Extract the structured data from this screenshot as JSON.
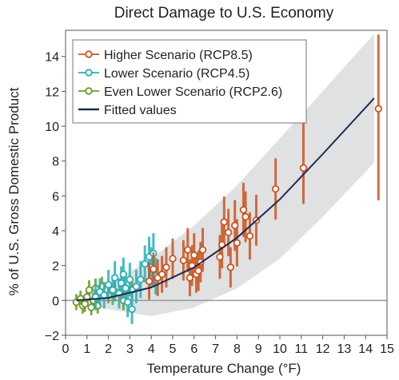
{
  "chart_data": {
    "type": "scatter",
    "title": "Direct Damage to U.S. Economy",
    "xlabel": "Temperature Change (°F)",
    "ylabel": "% of U.S. Gross Domestic Product",
    "xlim": [
      0,
      15
    ],
    "ylim": [
      -2,
      15.5
    ],
    "x_ticks": [
      "0",
      "1",
      "2",
      "3",
      "4",
      "5",
      "6",
      "7",
      "8",
      "9",
      "10",
      "11",
      "12",
      "13",
      "14",
      "15"
    ],
    "y_ticks": [
      "−2",
      "0",
      "2",
      "4",
      "6",
      "8",
      "10",
      "12",
      "14"
    ],
    "legend_position": "top-left",
    "grid": false,
    "legend": [
      "Higher Scenario (RCP8.5)",
      "Lower Scenario (RCP4.5)",
      "Even Lower Scenario (RCP2.6)",
      "Fitted values"
    ],
    "colors": {
      "higher": "#cc5520",
      "lower": "#2bb0b8",
      "even_lower": "#6e9a2a",
      "fitted": "#1f2a52",
      "band": "#d9dcde",
      "zero_line": "#999999"
    },
    "fitted_curve": {
      "x": [
        0.5,
        2,
        4,
        6,
        8,
        10,
        12,
        14.4
      ],
      "y": [
        0.0,
        0.15,
        0.75,
        1.9,
        3.6,
        5.8,
        8.4,
        11.6
      ]
    },
    "confidence_band": {
      "x": [
        0.5,
        2,
        4,
        6,
        8,
        10,
        12,
        14.4
      ],
      "upper": [
        0.2,
        0.9,
        2.4,
        4.3,
        6.6,
        9.3,
        12.0,
        15.3
      ],
      "lower": [
        -0.2,
        -0.5,
        -0.9,
        -0.4,
        0.7,
        2.4,
        4.8,
        7.9
      ]
    },
    "series": [
      {
        "name": "Higher Scenario (RCP8.5)",
        "points": [
          {
            "x": 3.9,
            "y": 1.1,
            "lo": 0.1,
            "hi": 2.1
          },
          {
            "x": 4.1,
            "y": 1.8,
            "lo": 0.9,
            "hi": 2.7
          },
          {
            "x": 4.3,
            "y": 1.3,
            "lo": 0.3,
            "hi": 2.3
          },
          {
            "x": 4.5,
            "y": 1.5,
            "lo": 0.5,
            "hi": 2.5
          },
          {
            "x": 4.7,
            "y": 1.9,
            "lo": 0.8,
            "hi": 3.0
          },
          {
            "x": 5.0,
            "y": 2.4,
            "lo": 1.3,
            "hi": 3.5
          },
          {
            "x": 5.5,
            "y": 2.3,
            "lo": 1.2,
            "hi": 3.4
          },
          {
            "x": 5.7,
            "y": 2.9,
            "lo": 1.7,
            "hi": 4.1
          },
          {
            "x": 5.8,
            "y": 1.3,
            "lo": 0.3,
            "hi": 2.3
          },
          {
            "x": 5.9,
            "y": 2.0,
            "lo": 0.9,
            "hi": 3.1
          },
          {
            "x": 6.0,
            "y": 2.6,
            "lo": 1.4,
            "hi": 3.8
          },
          {
            "x": 6.1,
            "y": 1.5,
            "lo": 0.5,
            "hi": 2.5
          },
          {
            "x": 6.2,
            "y": 1.7,
            "lo": 0.6,
            "hi": 2.8
          },
          {
            "x": 6.3,
            "y": 2.2,
            "lo": 1.1,
            "hi": 3.3
          },
          {
            "x": 6.4,
            "y": 2.9,
            "lo": 1.7,
            "hi": 4.1
          },
          {
            "x": 7.2,
            "y": 2.5,
            "lo": 1.3,
            "hi": 3.7
          },
          {
            "x": 7.3,
            "y": 3.2,
            "lo": 1.9,
            "hi": 4.5
          },
          {
            "x": 7.4,
            "y": 4.5,
            "lo": 3.1,
            "hi": 5.9
          },
          {
            "x": 7.6,
            "y": 3.9,
            "lo": 2.6,
            "hi": 5.2
          },
          {
            "x": 7.7,
            "y": 1.9,
            "lo": 0.8,
            "hi": 3.0
          },
          {
            "x": 7.9,
            "y": 4.3,
            "lo": 2.9,
            "hi": 5.7
          },
          {
            "x": 8.0,
            "y": 3.3,
            "lo": 2.0,
            "hi": 4.6
          },
          {
            "x": 8.3,
            "y": 5.2,
            "lo": 3.7,
            "hi": 6.7
          },
          {
            "x": 8.4,
            "y": 4.8,
            "lo": 3.4,
            "hi": 6.2
          },
          {
            "x": 8.6,
            "y": 3.7,
            "lo": 2.4,
            "hi": 5.0
          },
          {
            "x": 8.9,
            "y": 4.6,
            "lo": 3.2,
            "hi": 6.0
          },
          {
            "x": 9.8,
            "y": 6.4,
            "lo": 4.7,
            "hi": 8.1
          },
          {
            "x": 11.1,
            "y": 7.6,
            "lo": 5.6,
            "hi": 10.8
          },
          {
            "x": 14.6,
            "y": 11.0,
            "lo": 5.8,
            "hi": 15.2
          }
        ]
      },
      {
        "name": "Lower Scenario (RCP4.5)",
        "points": [
          {
            "x": 1.4,
            "y": 0.2,
            "lo": -0.5,
            "hi": 0.9
          },
          {
            "x": 1.6,
            "y": 0.5,
            "lo": -0.2,
            "hi": 1.2
          },
          {
            "x": 1.8,
            "y": 0.3,
            "lo": -0.4,
            "hi": 1.0
          },
          {
            "x": 2.0,
            "y": 0.9,
            "lo": 0.1,
            "hi": 1.7
          },
          {
            "x": 2.2,
            "y": 0.6,
            "lo": -0.2,
            "hi": 1.4
          },
          {
            "x": 2.3,
            "y": 1.3,
            "lo": 0.4,
            "hi": 2.2
          },
          {
            "x": 2.5,
            "y": 0.4,
            "lo": -0.4,
            "hi": 1.2
          },
          {
            "x": 2.6,
            "y": 1.0,
            "lo": 0.1,
            "hi": 1.9
          },
          {
            "x": 2.7,
            "y": 1.5,
            "lo": 0.6,
            "hi": 2.4
          },
          {
            "x": 2.8,
            "y": 0.7,
            "lo": -0.1,
            "hi": 1.5
          },
          {
            "x": 2.9,
            "y": -0.1,
            "lo": -0.9,
            "hi": 0.7
          },
          {
            "x": 3.0,
            "y": 1.2,
            "lo": 0.3,
            "hi": 2.1
          },
          {
            "x": 3.1,
            "y": -0.5,
            "lo": -1.3,
            "hi": 0.3
          },
          {
            "x": 3.3,
            "y": 0.8,
            "lo": -0.1,
            "hi": 1.7
          },
          {
            "x": 3.5,
            "y": 1.2,
            "lo": 0.2,
            "hi": 2.2
          },
          {
            "x": 3.7,
            "y": 2.1,
            "lo": 1.1,
            "hi": 3.1
          },
          {
            "x": 3.9,
            "y": 2.5,
            "lo": 1.4,
            "hi": 3.6
          },
          {
            "x": 4.0,
            "y": 1.9,
            "lo": 0.8,
            "hi": 3.0
          },
          {
            "x": 4.1,
            "y": 2.7,
            "lo": 1.6,
            "hi": 3.8
          },
          {
            "x": 4.2,
            "y": 1.4,
            "lo": 0.4,
            "hi": 2.4
          }
        ]
      },
      {
        "name": "Even Lower Scenario (RCP2.6)",
        "points": [
          {
            "x": 0.5,
            "y": -0.1,
            "lo": -0.5,
            "hi": 0.3
          },
          {
            "x": 0.7,
            "y": 0.1,
            "lo": -0.3,
            "hi": 0.5
          },
          {
            "x": 0.8,
            "y": -0.3,
            "lo": -0.7,
            "hi": 0.1
          },
          {
            "x": 0.9,
            "y": -0.2,
            "lo": -0.6,
            "hi": 0.2
          },
          {
            "x": 1.0,
            "y": 0.2,
            "lo": -0.2,
            "hi": 0.6
          },
          {
            "x": 1.1,
            "y": 0.6,
            "lo": 0.1,
            "hi": 1.1
          },
          {
            "x": 1.2,
            "y": -0.4,
            "lo": -0.8,
            "hi": 0.0
          },
          {
            "x": 1.3,
            "y": 0.0,
            "lo": -0.4,
            "hi": 0.4
          },
          {
            "x": 1.4,
            "y": 0.7,
            "lo": 0.2,
            "hi": 1.2
          },
          {
            "x": 1.5,
            "y": -0.3,
            "lo": -0.7,
            "hi": 0.1
          },
          {
            "x": 1.7,
            "y": 0.8,
            "lo": 0.3,
            "hi": 1.3
          },
          {
            "x": 2.0,
            "y": 0.3,
            "lo": -0.1,
            "hi": 0.7
          },
          {
            "x": 2.3,
            "y": 0.5,
            "lo": 0.0,
            "hi": 1.0
          },
          {
            "x": 2.7,
            "y": 0.0,
            "lo": -0.5,
            "hi": 0.5
          },
          {
            "x": 3.1,
            "y": 0.6,
            "lo": 0.1,
            "hi": 1.1
          }
        ]
      }
    ]
  }
}
